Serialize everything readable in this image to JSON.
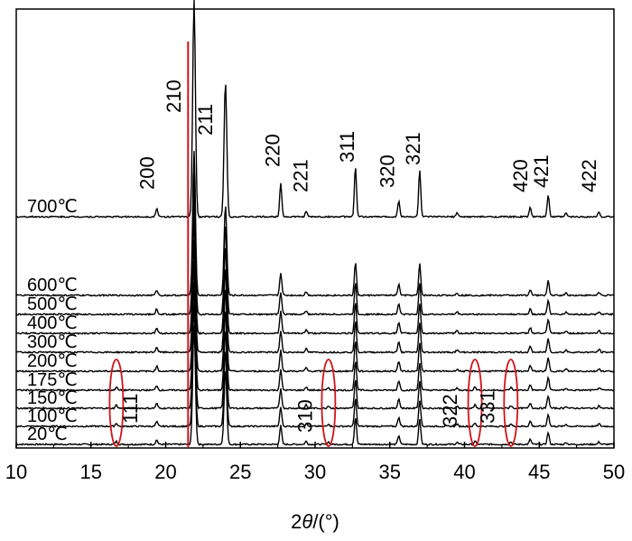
{
  "chart_data": {
    "type": "line",
    "xlabel": "2θ/(°)",
    "xlim": [
      10,
      50
    ],
    "x_ticks": [
      "10",
      "15",
      "20",
      "25",
      "30",
      "35",
      "40",
      "45",
      "50"
    ],
    "series": [
      {
        "name": "20℃"
      },
      {
        "name": "100℃"
      },
      {
        "name": "150℃"
      },
      {
        "name": "175℃"
      },
      {
        "name": "200℃"
      },
      {
        "name": "300℃"
      },
      {
        "name": "400℃"
      },
      {
        "name": "500℃"
      },
      {
        "name": "600℃"
      },
      {
        "name": "700℃"
      }
    ],
    "peaks": [
      {
        "x": 16.7,
        "h": 6,
        "minor": true
      },
      {
        "x": 19.4,
        "h": 9
      },
      {
        "x": 21.9,
        "h": 240,
        "wide": true
      },
      {
        "x": 24.0,
        "h": 150,
        "wide": true
      },
      {
        "x": 27.7,
        "h": 38
      },
      {
        "x": 29.4,
        "h": 6
      },
      {
        "x": 30.9,
        "h": 5,
        "minor": true
      },
      {
        "x": 32.7,
        "h": 55
      },
      {
        "x": 35.6,
        "h": 18
      },
      {
        "x": 37.0,
        "h": 52
      },
      {
        "x": 39.5,
        "h": 4
      },
      {
        "x": 40.7,
        "h": 6,
        "minor": true
      },
      {
        "x": 43.1,
        "h": 5,
        "minor": true
      },
      {
        "x": 44.4,
        "h": 10
      },
      {
        "x": 45.6,
        "h": 24
      },
      {
        "x": 46.8,
        "h": 4
      },
      {
        "x": 49.0,
        "h": 5
      }
    ],
    "annotations": [
      {
        "text": "200",
        "x": 19.2,
        "offset": 30
      },
      {
        "text": "210",
        "x": 21.0,
        "offset": 115
      },
      {
        "text": "211",
        "x": 23.1,
        "offset": 90
      },
      {
        "text": "220",
        "x": 27.6,
        "offset": 55
      },
      {
        "text": "221",
        "x": 29.5,
        "offset": 27
      },
      {
        "text": "311",
        "x": 32.6,
        "offset": 60
      },
      {
        "text": "320",
        "x": 35.3,
        "offset": 32
      },
      {
        "text": "321",
        "x": 37.0,
        "offset": 57
      },
      {
        "text": "420",
        "x": 44.2,
        "offset": 27
      },
      {
        "text": "421",
        "x": 45.6,
        "offset": 32
      },
      {
        "text": "422",
        "x": 48.8,
        "offset": 27
      },
      {
        "text": "111",
        "x": 18.1,
        "offset": 28
      },
      {
        "text": "310",
        "x": 29.8,
        "offset": 18
      },
      {
        "text": "322",
        "x": 39.5,
        "offset": 24
      },
      {
        "text": "331",
        "x": 42.0,
        "offset": 28
      }
    ],
    "red_line_x": 21.5,
    "highlight_ellipses": [
      16.7,
      30.9,
      40.7,
      43.1
    ],
    "grid": false
  }
}
